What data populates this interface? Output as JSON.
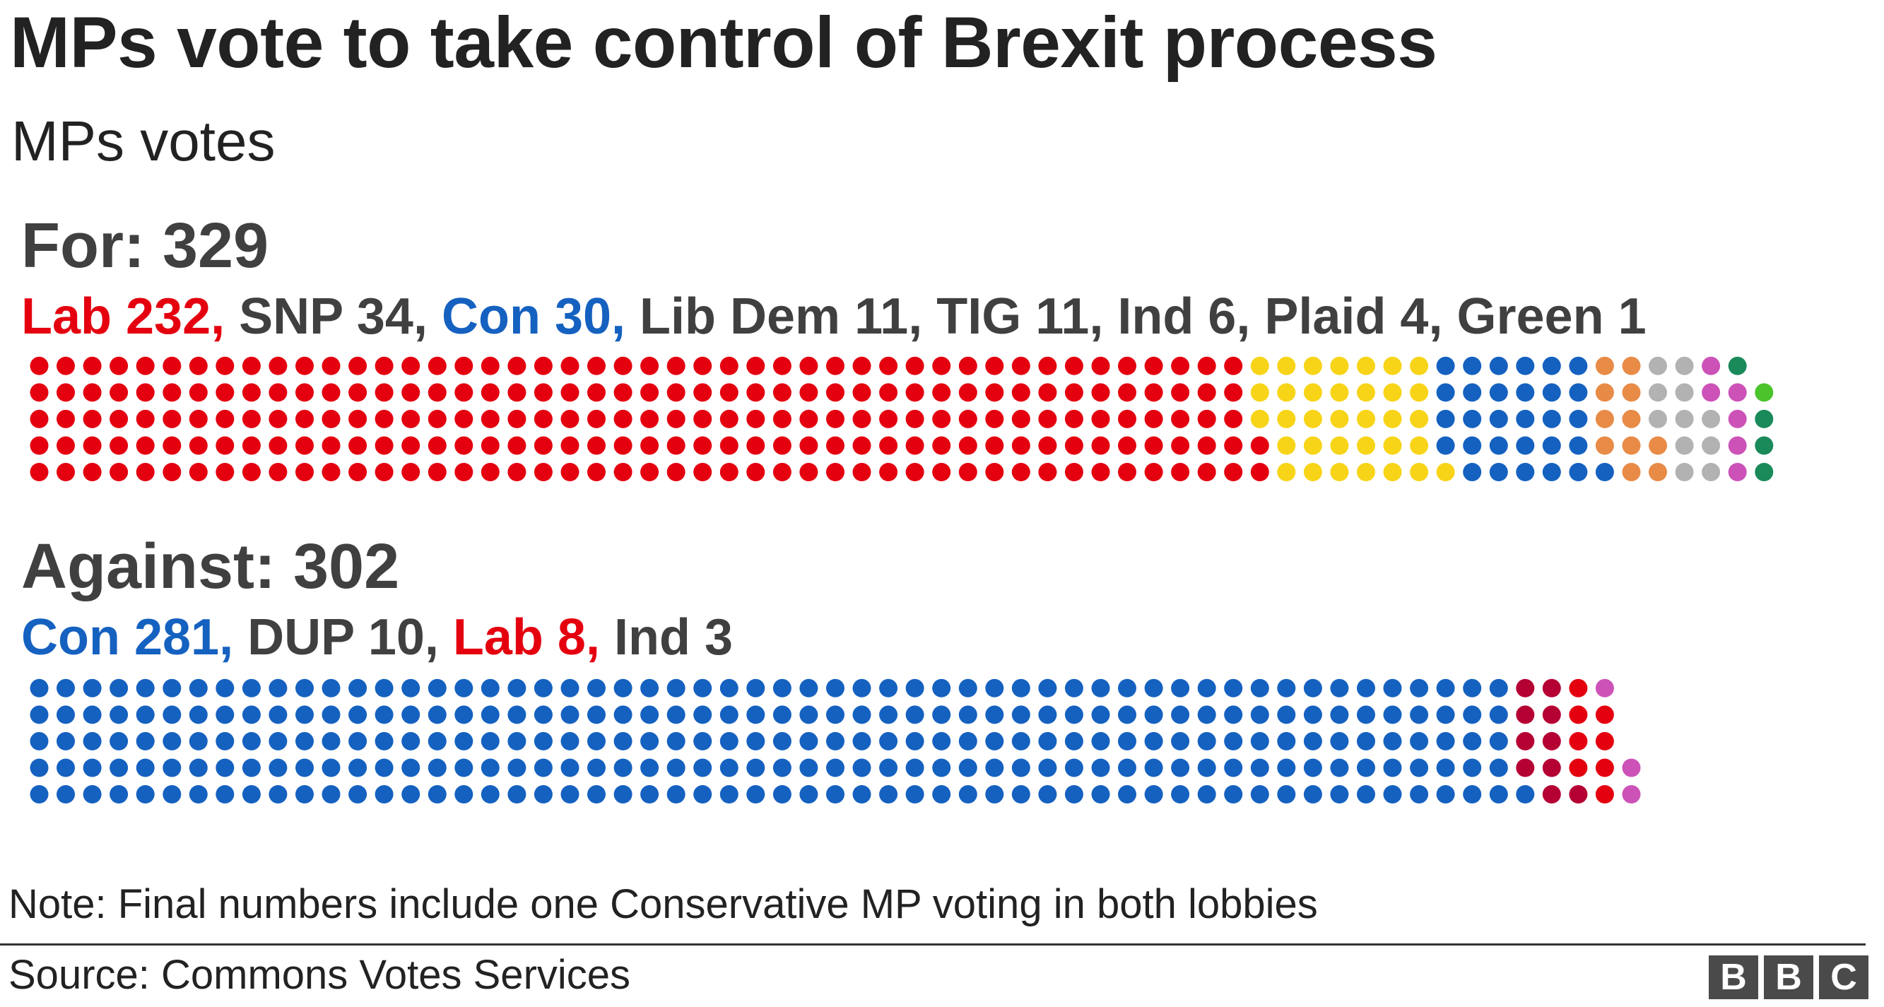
{
  "title": "MPs vote to take control of Brexit process",
  "subtitle": "MPs votes",
  "note": "Note: Final numbers include one Conservative MP voting in both lobbies",
  "source": "Source: Commons Votes Services",
  "logo": {
    "letters": [
      "B",
      "B",
      "C"
    ]
  },
  "chart_data": {
    "type": "waffle",
    "title": "MPs vote to take control of Brexit process",
    "subtitle": "MPs votes",
    "groups": [
      {
        "name": "For",
        "label": "For: 329",
        "total": 329,
        "parties": [
          {
            "name": "Lab",
            "value": 232,
            "label": "Lab 232,",
            "text_color": "#e4000f",
            "dot_color": "#e4000f"
          },
          {
            "name": "SNP",
            "value": 34,
            "label": " SNP 34,",
            "text_color": "#404040",
            "dot_color": "#f7d417"
          },
          {
            "name": "Con",
            "value": 30,
            "label": " Con 30,",
            "text_color": "#1561c0",
            "dot_color": "#1561c0"
          },
          {
            "name": "Lib Dem",
            "value": 11,
            "label": " Lib Dem 11,",
            "text_color": "#404040",
            "dot_color": "#e88b47"
          },
          {
            "name": "TIG",
            "value": 11,
            "label": " TIG 11,",
            "text_color": "#404040",
            "dot_color": "#b2b2b2"
          },
          {
            "name": "Ind",
            "value": 6,
            "label": " Ind 6,",
            "text_color": "#404040",
            "dot_color": "#cc52b8"
          },
          {
            "name": "Plaid",
            "value": 4,
            "label": " Plaid 4,",
            "text_color": "#404040",
            "dot_color": "#1a8a5a"
          },
          {
            "name": "Green",
            "value": 1,
            "label": " Green 1",
            "text_color": "#404040",
            "dot_color": "#4bc42b"
          }
        ]
      },
      {
        "name": "Against",
        "label": "Against: 302",
        "total": 302,
        "parties": [
          {
            "name": "Con",
            "value": 281,
            "label": "Con 281,",
            "text_color": "#1561c0",
            "dot_color": "#1561c0"
          },
          {
            "name": "DUP",
            "value": 10,
            "label": " DUP 10,",
            "text_color": "#404040",
            "dot_color": "#b50034"
          },
          {
            "name": "Lab",
            "value": 8,
            "label": " Lab 8,",
            "text_color": "#e4000f",
            "dot_color": "#e4000f"
          },
          {
            "name": "Ind",
            "value": 3,
            "label": " Ind 3",
            "text_color": "#404040",
            "dot_color": "#cc52b8"
          }
        ]
      }
    ]
  }
}
